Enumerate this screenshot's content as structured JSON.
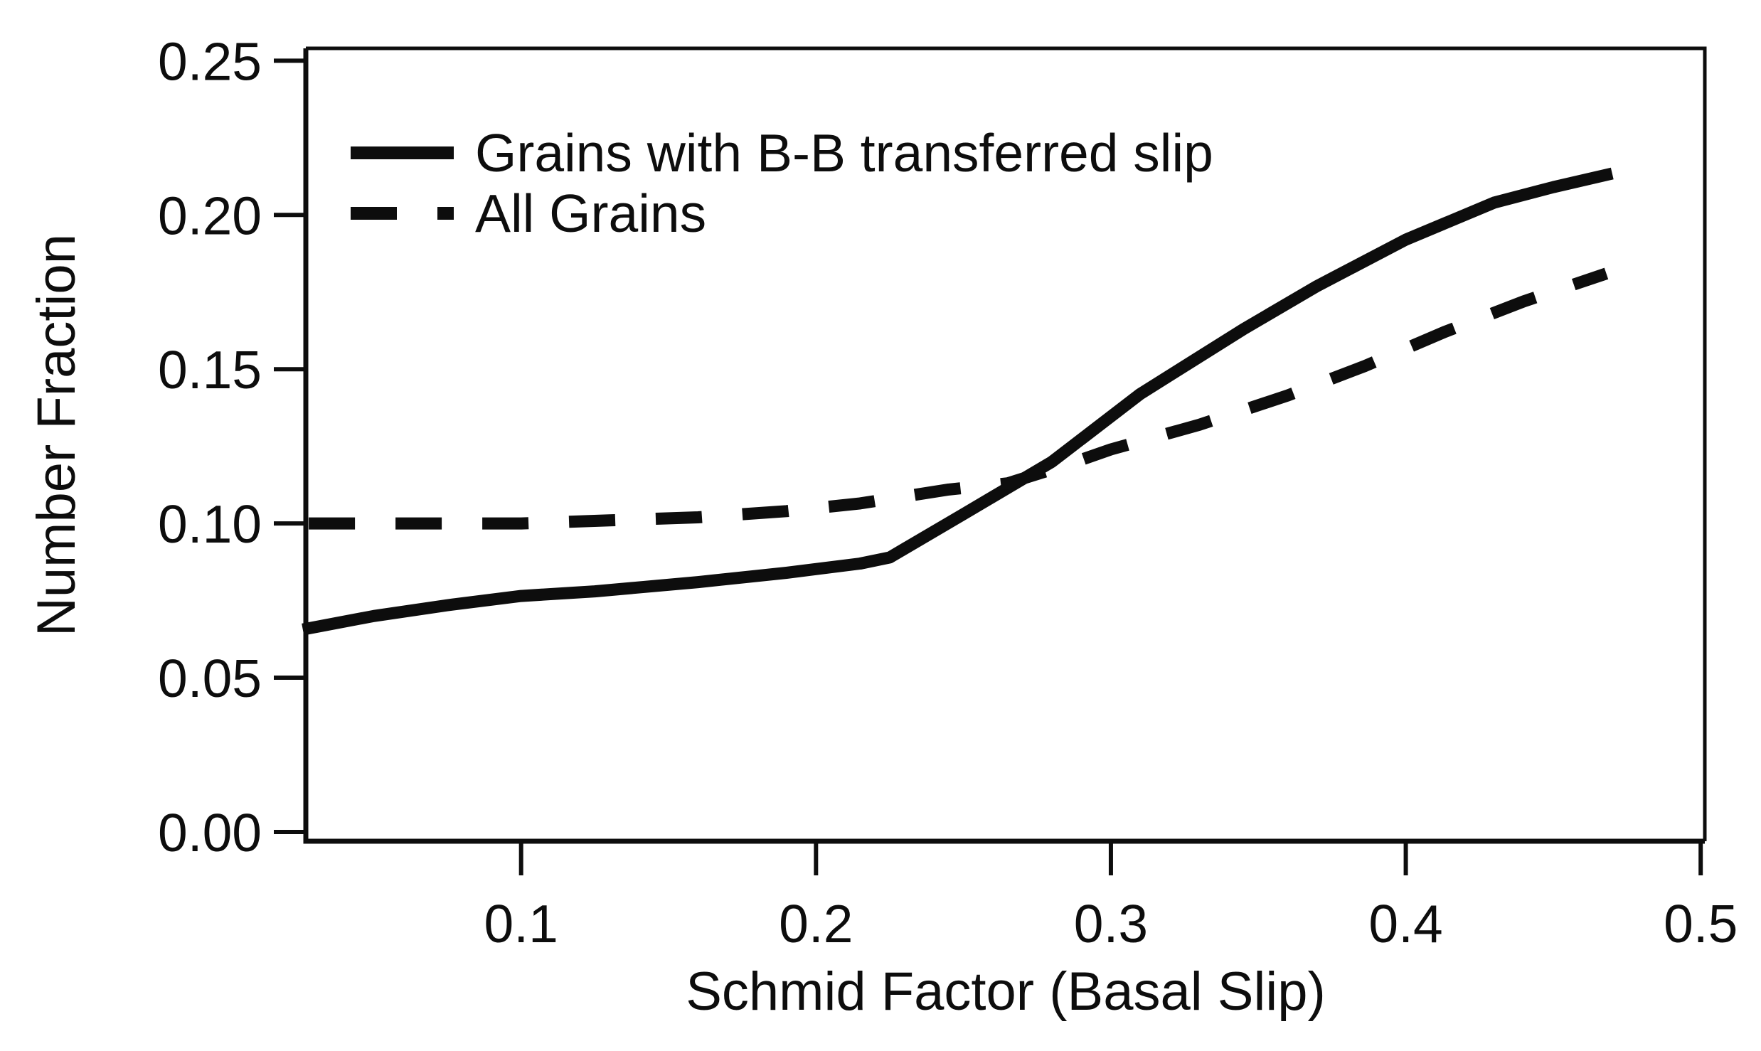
{
  "figure": {
    "background_color": "#ffffff",
    "line_color": "#0d0d0d"
  },
  "axes": {
    "x_label": "Schmid Factor (Basal Slip)",
    "y_label": "Number Fraction"
  },
  "legend": {
    "position": "top-left",
    "items": [
      {
        "label": "Grains with B-B transferred slip",
        "style": "solid"
      },
      {
        "label": "All Grains",
        "style": "dashed"
      }
    ]
  },
  "chart_data": {
    "type": "line",
    "title": "",
    "xlabel": "Schmid Factor (Basal Slip)",
    "ylabel": "Number Fraction",
    "xlim": [
      0.027,
      0.5014
    ],
    "ylim": [
      -0.003,
      0.254
    ],
    "grid": false,
    "legend_position": "top-left",
    "x_ticks": [
      0.1,
      0.2,
      0.3,
      0.4,
      0.5
    ],
    "x_tick_labels": [
      "0.1",
      "0.2",
      "0.3",
      "0.4",
      "0.5"
    ],
    "y_ticks": [
      0.0,
      0.05,
      0.1,
      0.15,
      0.2,
      0.25
    ],
    "y_tick_labels": [
      "0.00",
      "0.05",
      "0.10",
      "0.15",
      "0.20",
      "0.25"
    ],
    "series": [
      {
        "name": "Grains with B-B transferred slip",
        "style": "solid",
        "x": [
          0.028,
          0.05,
          0.075,
          0.1,
          0.125,
          0.16,
          0.19,
          0.215,
          0.225,
          0.25,
          0.28,
          0.31,
          0.345,
          0.37,
          0.4,
          0.43,
          0.45,
          0.468
        ],
        "y": [
          0.066,
          0.07,
          0.0735,
          0.0765,
          0.078,
          0.081,
          0.084,
          0.087,
          0.089,
          0.103,
          0.12,
          0.142,
          0.163,
          0.177,
          0.192,
          0.204,
          0.209,
          0.213
        ]
      },
      {
        "name": "All Grains",
        "style": "dashed",
        "x": [
          0.028,
          0.06,
          0.1,
          0.13,
          0.16,
          0.19,
          0.215,
          0.245,
          0.265,
          0.285,
          0.3,
          0.33,
          0.36,
          0.386,
          0.413,
          0.44,
          0.468
        ],
        "y": [
          0.1,
          0.1,
          0.1,
          0.101,
          0.102,
          0.104,
          0.1065,
          0.111,
          0.113,
          0.119,
          0.124,
          0.132,
          0.1415,
          0.151,
          0.162,
          0.172,
          0.181
        ]
      }
    ]
  }
}
